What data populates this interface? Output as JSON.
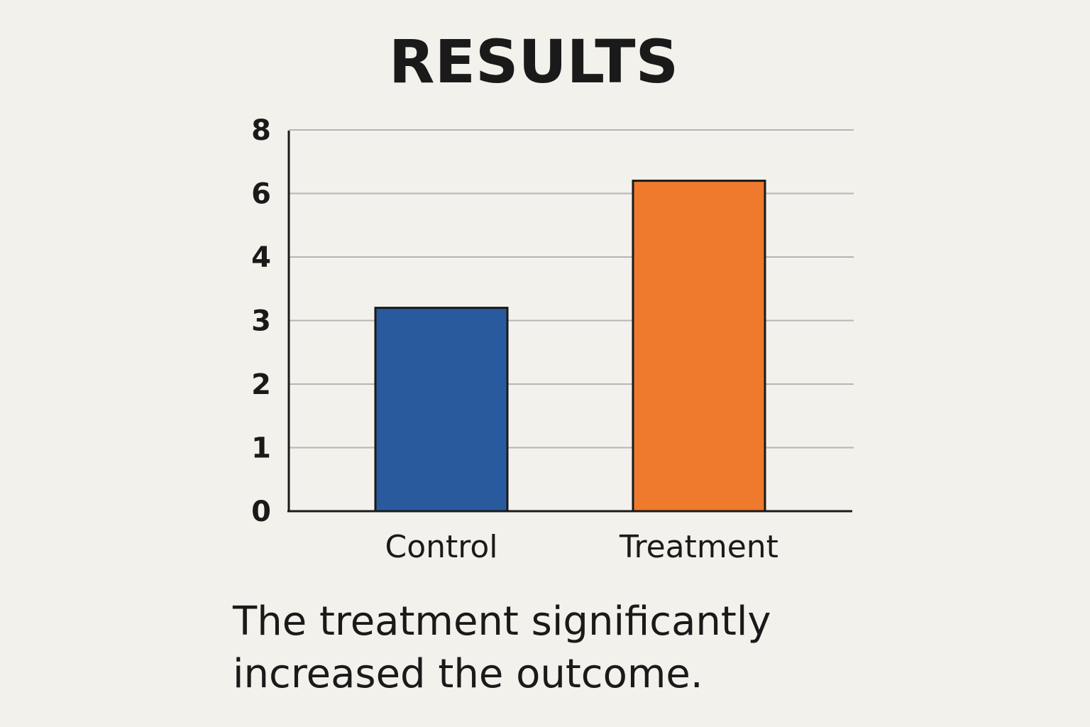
{
  "chart_data": {
    "type": "bar",
    "title": "RESULTS",
    "categories": [
      "Control",
      "Treatment"
    ],
    "values": [
      3.2,
      6.4
    ],
    "colors": [
      "#2a5a9e",
      "#ef7a2e"
    ],
    "y_ticks": [
      "0",
      "1",
      "2",
      "3",
      "4",
      "6",
      "8"
    ],
    "xlabel": "",
    "ylabel": "",
    "ylim": [
      0,
      8
    ],
    "grid": true,
    "legend": "none"
  },
  "caption": {
    "line1": "The treatment significantly",
    "line2": "increased the outcome."
  }
}
